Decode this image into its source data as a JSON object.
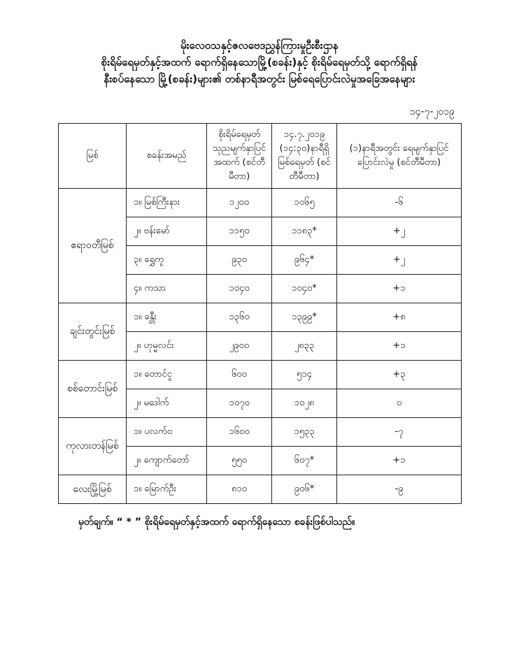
{
  "title_lines": [
    "မိုးလေဝသနှင့်ဇလဗေဒညွှန်ကြားမှုဦးစီးဌာန",
    "စိုးရိမ်ရေမှတ်နှင့်အထက် ရောက်ရှိနေသောမြို့(စခန်း)နှင့် စိုးရိမ်ရေမှတ်သို့ ရောက်ရှိရန်",
    "နီးစပ်နေသော မြို့(စခန်း)များ၏ တစ်နာရီအတွင်း မြစ်ရေပြောင်းလဲမှုအခြေအနေများ"
  ],
  "date": "၁၄-၇-၂၀၁၉",
  "table": {
    "headers": [
      "မြစ်",
      "စခန်းအမည်",
      "စိုးရိမ်ရေမှတ် သုညမျက်နှာပြင် အထက် (စင်တီမီတာ)",
      "၁၄.၇.၂၀၁၉ (၁၄:၃၀)နာရီရှိ မြစ်ရေမှတ် (စင်တီမီတာ)",
      "(၁)နာရီအတွင်း ရေမျက်နှာပြင်ပြောင်းလဲမှု (စင်တီမီတာ)"
    ],
    "rivers": [
      {
        "name": "ဧရာဝတီမြစ်",
        "stations": [
          {
            "station": "၁။ မြစ်ကြီးနား",
            "danger": "၁၂၀၀",
            "level": "၁၀၆၅",
            "change": "-၆"
          },
          {
            "station": "၂။ ဗန်းမော်",
            "danger": "၁၁၅၀",
            "level": "၁၁၈၃*",
            "change": "+၂"
          },
          {
            "station": "၃။ ရွှေကူ",
            "danger": "၉၃၀",
            "level": "၉၆၄*",
            "change": "+၂"
          },
          {
            "station": "၄။ ကသာ",
            "danger": "၁၀၄၀",
            "level": "၁၀၄၀*",
            "change": "+၁"
          }
        ]
      },
      {
        "name": "ချင်းတွင်းမြစ်",
        "stations": [
          {
            "station": "၁။ ခန္တီး",
            "danger": "၁၃၆၀",
            "level": "၁၃၉၉*",
            "change": "+၈"
          },
          {
            "station": "၂။ ဟုမ္မလင်း",
            "danger": "၂၉၀၀",
            "level": "၂၈၃၃",
            "change": "+၁"
          }
        ]
      },
      {
        "name": "စစ်တောင်းမြစ်",
        "stations": [
          {
            "station": "၁။ တောင်ငူ",
            "danger": "၆၀၀",
            "level": "၅၁၄",
            "change": "+၃"
          },
          {
            "station": "၂။ မဒေါက်",
            "danger": "၁၀၇၀",
            "level": "၁၀၂၈",
            "change": "၀"
          }
        ]
      },
      {
        "name": "ကုလားတန်မြစ်",
        "stations": [
          {
            "station": "၁။ ပလက်ဝ",
            "danger": "၁၆၀၀",
            "level": "၁၅၃၃",
            "change": "-၇"
          },
          {
            "station": "၂။ ကျောက်တော်",
            "danger": "၅၅၀",
            "level": "၆၀၇*",
            "change": "+၁"
          }
        ]
      },
      {
        "name": "လေးမြို့မြစ်",
        "stations": [
          {
            "station": "၁။ မြောက်ဦး",
            "danger": "၈၁၀",
            "level": "၉၀၆*",
            "change": "-၉"
          }
        ]
      }
    ]
  },
  "note": "မှတ်ချက်။ “ * ” စိုးရိမ်ရေမှတ်နှင့်အထက် ရောက်ရှိနေသော စခန်းဖြစ်ပါသည်။"
}
